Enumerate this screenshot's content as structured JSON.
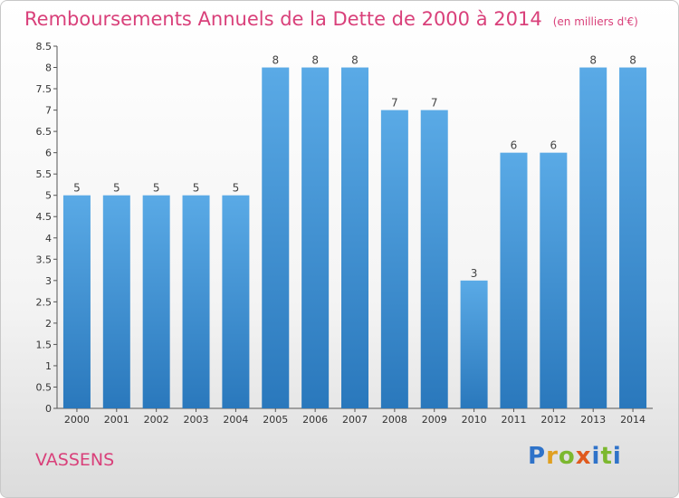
{
  "title": "Remboursements Annuels de la Dette de 2000 à 2014",
  "unit": "(en milliers d'€)",
  "commune": "VASSENS",
  "logo": {
    "text": "Proxiti",
    "letters": [
      {
        "ch": "P",
        "color": "#2f73c9"
      },
      {
        "ch": "r",
        "color": "#e0a020"
      },
      {
        "ch": "o",
        "color": "#7cb82f"
      },
      {
        "ch": "x",
        "color": "#e05a1e"
      },
      {
        "ch": "i",
        "color": "#2f73c9"
      },
      {
        "ch": "t",
        "color": "#7cb82f"
      },
      {
        "ch": "i",
        "color": "#2f73c9"
      }
    ]
  },
  "chart_data": {
    "type": "bar",
    "categories": [
      "2000",
      "2001",
      "2002",
      "2003",
      "2004",
      "2005",
      "2006",
      "2007",
      "2008",
      "2009",
      "2010",
      "2011",
      "2012",
      "2013",
      "2014"
    ],
    "values": [
      5,
      5,
      5,
      5,
      5,
      8,
      8,
      8,
      7,
      7,
      3,
      6,
      6,
      8,
      8
    ],
    "ylim": [
      0,
      8.5
    ],
    "yticks": [
      "0",
      "0.5",
      "1",
      "1.5",
      "2",
      "2.5",
      "3",
      "3.5",
      "4",
      "4.5",
      "5",
      "5.5",
      "6",
      "6.5",
      "7",
      "7.5",
      "8",
      "8.5"
    ],
    "bar_color_top": "#5aaae6",
    "bar_color_bottom": "#2a78bc",
    "grid": false
  }
}
